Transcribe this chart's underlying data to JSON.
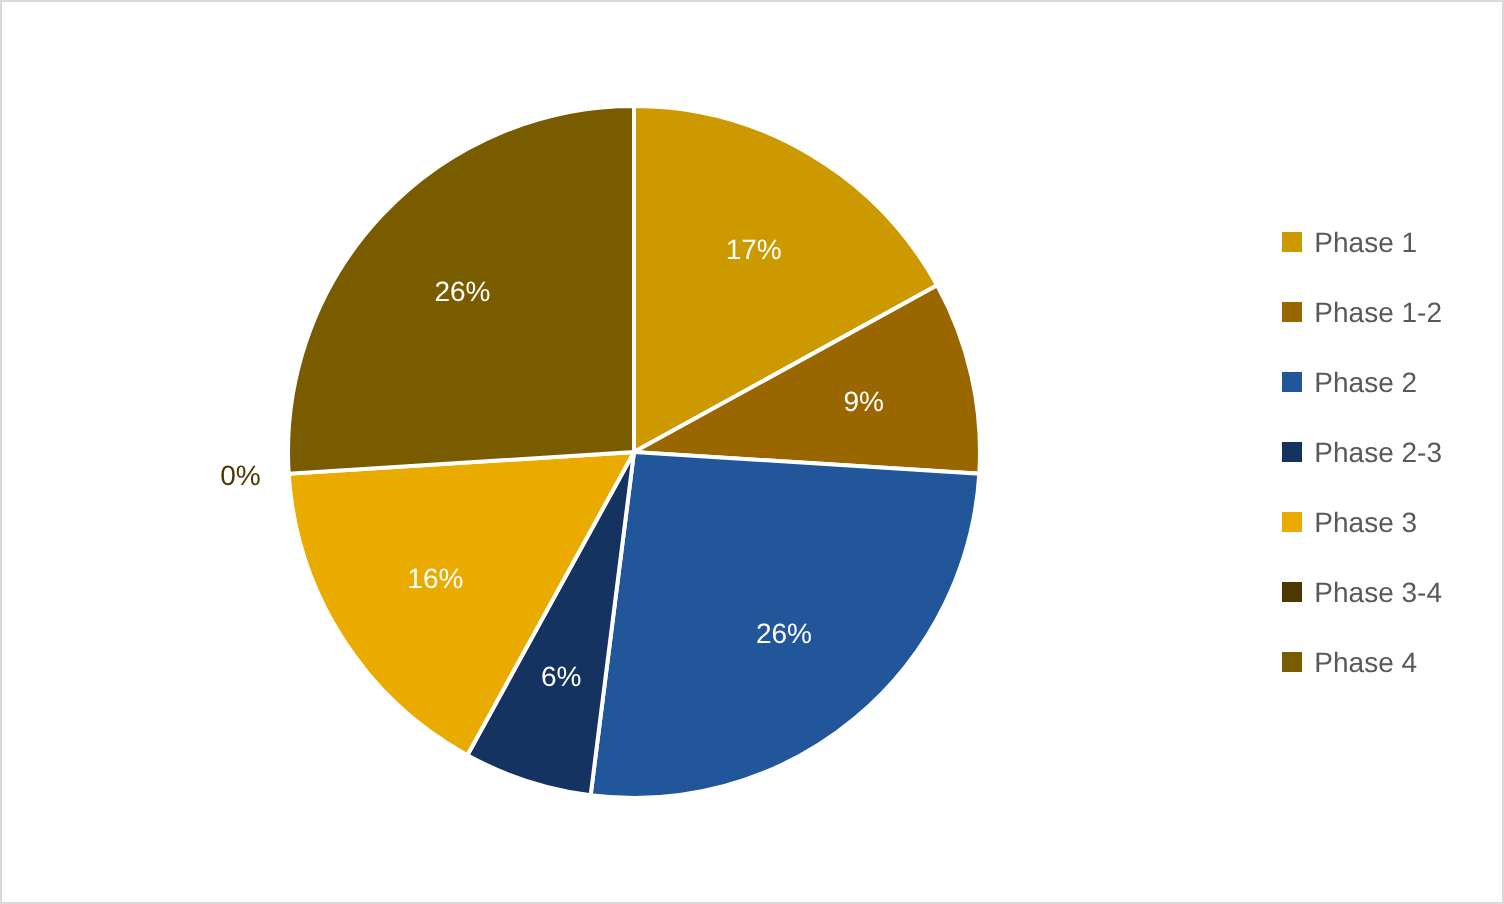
{
  "chart_data": {
    "type": "pie",
    "categories": [
      "Phase 1",
      "Phase 1-2",
      "Phase 2",
      "Phase 2-3",
      "Phase 3",
      "Phase 3-4",
      "Phase 4"
    ],
    "values": [
      17,
      9,
      26,
      6,
      16,
      0,
      26
    ],
    "value_labels": [
      "17%",
      "9%",
      "26%",
      "6%",
      "16%",
      "0%",
      "26%"
    ],
    "colors": [
      "#cc9a00",
      "#9a6600",
      "#21569b",
      "#153361",
      "#eaab00",
      "#4d3900",
      "#7a5c00"
    ],
    "legend": "right"
  }
}
